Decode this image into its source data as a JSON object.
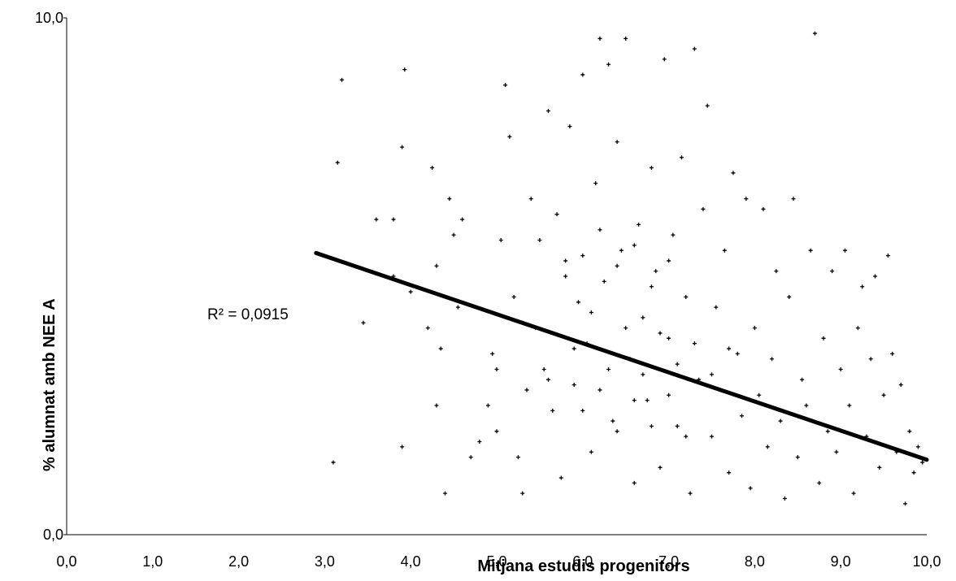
{
  "chart_data": {
    "type": "scatter",
    "xlabel": "Mitjana estudis progenitors",
    "ylabel": "% alumnat amb NEE A",
    "xlim": [
      0,
      10
    ],
    "ylim": [
      0,
      10
    ],
    "x_ticks": [
      "0,0",
      "1,0",
      "2,0",
      "3,0",
      "4,0",
      "5,0",
      "6,0",
      "7,0",
      "8,0",
      "9,0",
      "10,0"
    ],
    "y_ticks": [
      "0,0",
      "10,0"
    ],
    "grid": false,
    "legend": "none",
    "marker_color": "#000000",
    "trendline": {
      "type": "linear",
      "label": "R² = 0,0915",
      "x": [
        2.9,
        10.0
      ],
      "y": [
        5.45,
        1.45
      ],
      "color": "#000000"
    },
    "series": [
      {
        "points": [
          [
            3.2,
            8.8
          ],
          [
            3.15,
            7.2
          ],
          [
            3.1,
            1.4
          ],
          [
            3.45,
            4.1
          ],
          [
            3.6,
            6.1
          ],
          [
            3.8,
            6.1
          ],
          [
            3.9,
            1.7
          ],
          [
            3.93,
            9.0
          ],
          [
            3.9,
            7.5
          ],
          [
            3.8,
            5.0
          ],
          [
            4.0,
            4.7
          ],
          [
            4.2,
            4.0
          ],
          [
            4.3,
            5.2
          ],
          [
            4.25,
            7.1
          ],
          [
            4.3,
            2.5
          ],
          [
            4.35,
            3.6
          ],
          [
            4.4,
            0.8
          ],
          [
            4.45,
            6.5
          ],
          [
            4.5,
            5.8
          ],
          [
            4.55,
            4.4
          ],
          [
            4.6,
            6.1
          ],
          [
            4.7,
            1.5
          ],
          [
            4.8,
            1.8
          ],
          [
            4.9,
            2.5
          ],
          [
            4.95,
            3.5
          ],
          [
            5.0,
            2.0
          ],
          [
            5.05,
            5.7
          ],
          [
            5.1,
            8.7
          ],
          [
            5.15,
            7.7
          ],
          [
            5.2,
            4.6
          ],
          [
            5.25,
            1.5
          ],
          [
            5.3,
            0.8
          ],
          [
            5.35,
            2.8
          ],
          [
            5.4,
            6.5
          ],
          [
            5.45,
            4.0
          ],
          [
            5.5,
            5.7
          ],
          [
            5.55,
            3.2
          ],
          [
            5.6,
            8.2
          ],
          [
            5.65,
            2.4
          ],
          [
            5.7,
            6.2
          ],
          [
            5.75,
            1.1
          ],
          [
            5.8,
            5.3
          ],
          [
            5.85,
            7.9
          ],
          [
            5.9,
            2.9
          ],
          [
            5.95,
            4.5
          ],
          [
            6.0,
            8.9
          ],
          [
            6.05,
            3.7
          ],
          [
            6.1,
            1.6
          ],
          [
            6.15,
            6.8
          ],
          [
            6.2,
            9.6
          ],
          [
            6.25,
            4.9
          ],
          [
            6.3,
            9.1
          ],
          [
            6.35,
            2.2
          ],
          [
            6.4,
            7.6
          ],
          [
            6.45,
            5.5
          ],
          [
            6.5,
            9.6
          ],
          [
            6.55,
            3.4
          ],
          [
            6.6,
            1.0
          ],
          [
            6.65,
            6.0
          ],
          [
            6.7,
            4.2
          ],
          [
            6.75,
            2.6
          ],
          [
            6.8,
            7.1
          ],
          [
            6.85,
            5.1
          ],
          [
            6.9,
            1.3
          ],
          [
            6.95,
            9.2
          ],
          [
            7.0,
            3.8
          ],
          [
            7.05,
            5.8
          ],
          [
            7.1,
            2.1
          ],
          [
            7.15,
            7.3
          ],
          [
            7.2,
            4.6
          ],
          [
            7.25,
            0.8
          ],
          [
            7.3,
            9.4
          ],
          [
            7.35,
            3.0
          ],
          [
            7.4,
            6.3
          ],
          [
            7.45,
            8.3
          ],
          [
            7.5,
            1.9
          ],
          [
            7.55,
            4.4
          ],
          [
            7.6,
            2.8
          ],
          [
            7.65,
            5.5
          ],
          [
            7.7,
            1.2
          ],
          [
            7.75,
            7.0
          ],
          [
            7.8,
            3.5
          ],
          [
            7.85,
            2.3
          ],
          [
            7.9,
            6.5
          ],
          [
            7.95,
            0.9
          ],
          [
            8.0,
            4.0
          ],
          [
            8.05,
            2.7
          ],
          [
            8.1,
            6.3
          ],
          [
            8.15,
            1.7
          ],
          [
            8.2,
            3.4
          ],
          [
            8.25,
            5.1
          ],
          [
            8.3,
            2.2
          ],
          [
            8.35,
            0.7
          ],
          [
            8.4,
            4.6
          ],
          [
            8.45,
            6.5
          ],
          [
            8.5,
            1.5
          ],
          [
            8.55,
            3.0
          ],
          [
            8.6,
            2.5
          ],
          [
            8.65,
            5.5
          ],
          [
            8.7,
            9.7
          ],
          [
            8.75,
            1.0
          ],
          [
            8.8,
            3.8
          ],
          [
            8.85,
            2.0
          ],
          [
            8.9,
            5.1
          ],
          [
            8.95,
            1.6
          ],
          [
            9.0,
            3.2
          ],
          [
            9.05,
            5.5
          ],
          [
            9.1,
            2.5
          ],
          [
            9.15,
            0.8
          ],
          [
            9.2,
            4.0
          ],
          [
            9.25,
            4.8
          ],
          [
            9.3,
            1.9
          ],
          [
            9.35,
            3.4
          ],
          [
            9.4,
            5.0
          ],
          [
            9.45,
            1.3
          ],
          [
            9.5,
            2.7
          ],
          [
            9.55,
            5.4
          ],
          [
            9.6,
            3.5
          ],
          [
            9.65,
            1.6
          ],
          [
            9.7,
            2.9
          ],
          [
            9.75,
            0.6
          ],
          [
            9.8,
            2.0
          ],
          [
            9.85,
            1.2
          ],
          [
            9.9,
            1.7
          ],
          [
            9.95,
            1.4
          ],
          [
            5.0,
            3.2
          ],
          [
            5.3,
            4.1
          ],
          [
            5.6,
            3.0
          ],
          [
            5.9,
            3.6
          ],
          [
            6.1,
            4.3
          ],
          [
            6.3,
            3.2
          ],
          [
            6.5,
            4.0
          ],
          [
            6.7,
            3.1
          ],
          [
            6.9,
            3.9
          ],
          [
            7.1,
            3.3
          ],
          [
            7.3,
            3.7
          ],
          [
            7.5,
            3.1
          ],
          [
            7.7,
            3.6
          ],
          [
            6.0,
            2.4
          ],
          [
            6.2,
            2.8
          ],
          [
            6.4,
            2.0
          ],
          [
            6.6,
            2.6
          ],
          [
            6.8,
            2.1
          ],
          [
            7.0,
            2.7
          ],
          [
            7.2,
            1.9
          ],
          [
            5.8,
            5.0
          ],
          [
            6.0,
            5.4
          ],
          [
            6.2,
            5.9
          ],
          [
            6.4,
            5.2
          ],
          [
            6.6,
            5.6
          ],
          [
            6.8,
            4.8
          ],
          [
            7.0,
            5.3
          ]
        ]
      }
    ]
  }
}
